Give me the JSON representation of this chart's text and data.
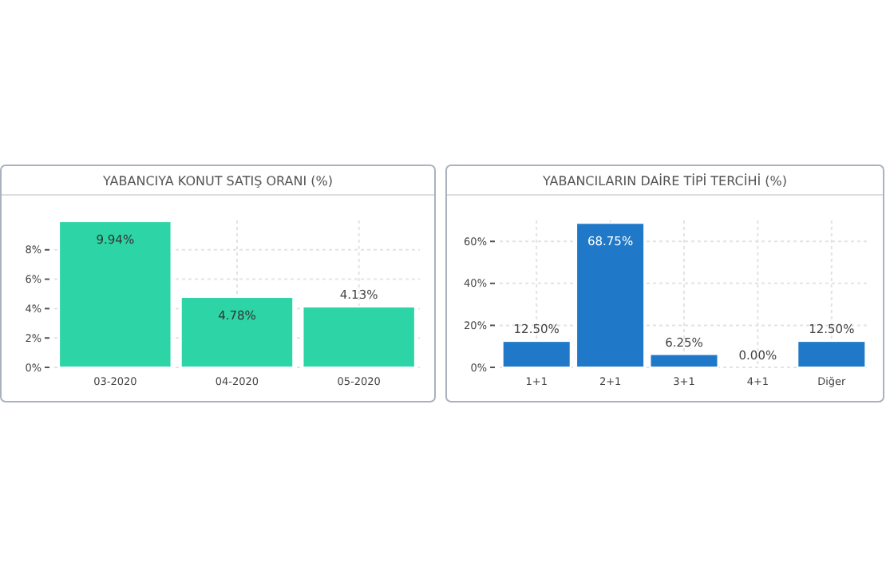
{
  "chart_data": [
    {
      "type": "bar",
      "title": "YABANCIYA KONUT SATIŞ ORANI (%)",
      "categories": [
        "03-2020",
        "04-2020",
        "05-2020"
      ],
      "values": [
        9.94,
        4.78,
        4.13
      ],
      "value_labels": [
        "9.94%",
        "4.78%",
        "4.13%"
      ],
      "color": "#2dd4a5",
      "ylim": [
        0,
        10
      ],
      "yticks": [
        {
          "value": 0,
          "label": "0%"
        },
        {
          "value": 2,
          "label": "2%"
        },
        {
          "value": 4,
          "label": "4%"
        },
        {
          "value": 6,
          "label": "6%"
        },
        {
          "value": 8,
          "label": "8%"
        }
      ],
      "grid": true
    },
    {
      "type": "bar",
      "title": "YABANCILARIN DAİRE TİPİ TERCİHİ (%)",
      "categories": [
        "1+1",
        "2+1",
        "3+1",
        "4+1",
        "Diğer"
      ],
      "values": [
        12.5,
        68.75,
        6.25,
        0,
        12.5
      ],
      "value_labels": [
        "12.50%",
        "68.75%",
        "6.25%",
        "0.00%",
        "12.50%"
      ],
      "color": "#1f78c8",
      "ylim": [
        0,
        70
      ],
      "yticks": [
        {
          "value": 0,
          "label": "0%"
        },
        {
          "value": 20,
          "label": "20%"
        },
        {
          "value": 40,
          "label": "40%"
        },
        {
          "value": 60,
          "label": "60%"
        }
      ],
      "grid": true
    }
  ]
}
